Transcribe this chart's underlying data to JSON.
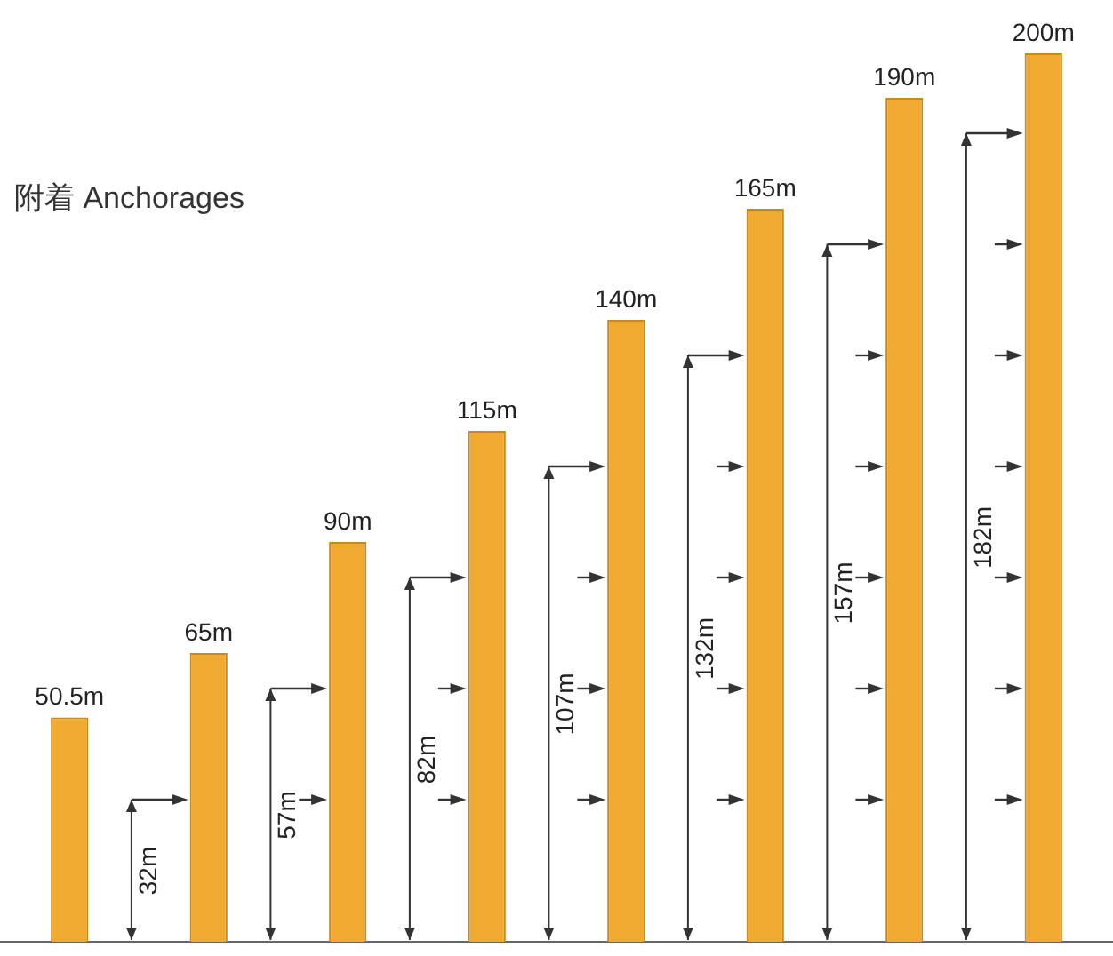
{
  "chart_data": {
    "type": "bar",
    "title": "附着 Anchorages",
    "categories": [
      null,
      null,
      null,
      null,
      null,
      null,
      null,
      null
    ],
    "values": [
      50.5,
      65,
      90,
      115,
      140,
      165,
      190,
      200
    ],
    "value_labels": [
      "50.5m",
      "65m",
      "90m",
      "115m",
      "140m",
      "165m",
      "190m",
      "200m"
    ],
    "color": "#f0aa32",
    "annotations": [
      "32m",
      "57m",
      "82m",
      "107m",
      "132m",
      "157m",
      "182m"
    ]
  }
}
